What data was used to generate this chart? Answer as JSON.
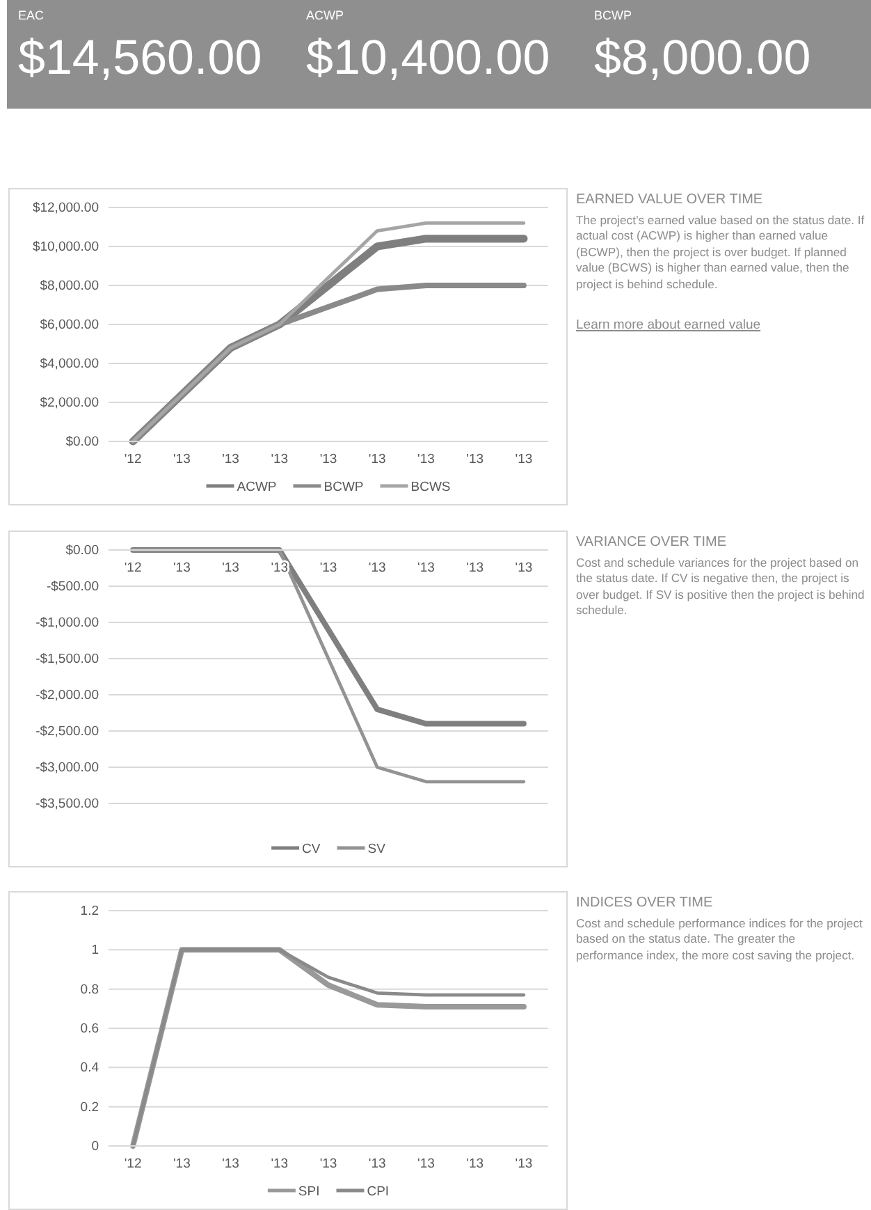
{
  "chart_data": [
    {
      "type": "other",
      "categories": [
        "EAC",
        "ACWP",
        "BCWP"
      ],
      "value_labels": [
        "$14,560.00",
        "$10,400.00",
        "$8,000.00"
      ],
      "color": "#8f8f8f"
    },
    {
      "type": "line",
      "categories": [
        "'12",
        "'13",
        "'13",
        "'13",
        "'13",
        "'13",
        "'13",
        "'13",
        "'13"
      ],
      "series": [
        {
          "name": "ACWP",
          "color": "#7f7f7f",
          "values": [
            0,
            2400,
            4800,
            6000,
            8000,
            10000,
            10400,
            10400,
            10400
          ]
        },
        {
          "name": "BCWP",
          "color": "#8a8a8a",
          "values": [
            0,
            2400,
            4800,
            6000,
            6900,
            7800,
            8000,
            8000,
            8000
          ]
        },
        {
          "name": "BCWS",
          "color": "#a5a5a5",
          "values": [
            0,
            2400,
            4800,
            6000,
            8400,
            10800,
            11200,
            11200,
            11200
          ]
        }
      ],
      "ylim": [
        0,
        12000
      ],
      "yticks": [
        {
          "value": 0,
          "label": "$0.00"
        },
        {
          "value": 2000,
          "label": "$2,000.00"
        },
        {
          "value": 4000,
          "label": "$4,000.00"
        },
        {
          "value": 6000,
          "label": "$6,000.00"
        },
        {
          "value": 8000,
          "label": "$8,000.00"
        },
        {
          "value": 10000,
          "label": "$10,000.00"
        },
        {
          "value": 12000,
          "label": "$12,000.00"
        }
      ],
      "grid": "y",
      "legend": "bottom"
    },
    {
      "type": "other",
      "title": "EARNED VALUE OVER TIME",
      "subtitle": "The project’s earned value based on the status date. If actual cost (ACWP) is higher than earned value (BCWP), then the project is over budget.  If planned value (BCWS) is higher than earned value, then the project is behind schedule.",
      "annotations": [
        "Learn more about earned value"
      ]
    },
    {
      "type": "line",
      "categories": [
        "'12",
        "'13",
        "'13",
        "'13",
        "'13",
        "'13",
        "'13",
        "'13",
        "'13"
      ],
      "series": [
        {
          "name": "CV",
          "color": "#7f7f7f",
          "values": [
            0,
            0,
            0,
            0,
            -1100,
            -2200,
            -2400,
            -2400,
            -2400
          ]
        },
        {
          "name": "SV",
          "color": "#939393",
          "values": [
            0,
            0,
            0,
            0,
            -1500,
            -3000,
            -3200,
            -3200,
            -3200
          ]
        }
      ],
      "ylim": [
        -3500,
        0
      ],
      "yticks": [
        {
          "value": 0,
          "label": "$0.00"
        },
        {
          "value": -500,
          "label": "-$500.00"
        },
        {
          "value": -1000,
          "label": "-$1,000.00"
        },
        {
          "value": -1500,
          "label": "-$1,500.00"
        },
        {
          "value": -2000,
          "label": "-$2,000.00"
        },
        {
          "value": -2500,
          "label": "-$2,500.00"
        },
        {
          "value": -3000,
          "label": "-$3,000.00"
        },
        {
          "value": -3500,
          "label": "-$3,500.00"
        }
      ],
      "grid": "y",
      "legend": "bottom"
    },
    {
      "type": "other",
      "title": "VARIANCE OVER TIME",
      "subtitle": "Cost and schedule variances for the project based on the status date.  If CV is negative then, the project is over budget.  If SV is positive then the project is behind schedule."
    },
    {
      "type": "line",
      "categories": [
        "'12",
        "'13",
        "'13",
        "'13",
        "'13",
        "'13",
        "'13",
        "'13",
        "'13"
      ],
      "series": [
        {
          "name": "SPI",
          "color": "#999999",
          "values": [
            0,
            1,
            1,
            1,
            0.82,
            0.72,
            0.71,
            0.71,
            0.71
          ]
        },
        {
          "name": "CPI",
          "color": "#8a8a8a",
          "values": [
            0,
            1,
            1,
            1,
            0.86,
            0.78,
            0.77,
            0.77,
            0.77
          ]
        }
      ],
      "ylim": [
        0,
        1.2
      ],
      "yticks": [
        0,
        0.2,
        0.4,
        0.6,
        0.8,
        1,
        1.2
      ],
      "grid": "y",
      "legend": "bottom"
    },
    {
      "type": "other",
      "title": "INDICES OVER TIME",
      "subtitle": "Cost and schedule performance indices for the project based on the status date.  The greater the performance index, the more cost saving the project."
    }
  ]
}
